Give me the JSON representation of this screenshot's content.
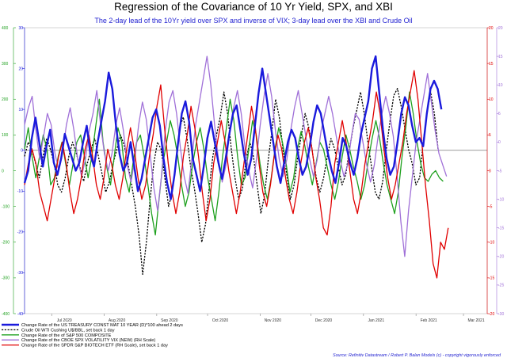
{
  "chart_data": {
    "type": "line",
    "title": "Regression of the Covariance of 10 Yr Yield, SPX, and XBI",
    "subtitle": "The 2-day lead of the 10Yr yield over SPX and inverse of VIX; 3-day lead over the XBI and Crude Oil",
    "source": "Source: Refinitiv Datastream / Robert P. Balan Models (c) - copyright vigorously enforced",
    "x_ticks": [
      "Jul 2020",
      "Aug 2020",
      "Sep 2020",
      "Oct 2020",
      "Nov 2020",
      "Dec 2020",
      "Jan 2021",
      "Feb 2021",
      "Mar 2021"
    ],
    "x_range": [
      "2020-06-15",
      "2021-03-15"
    ],
    "axes": {
      "blue": {
        "ticks": [
          "-40",
          "-30",
          "-20",
          "-10",
          "0",
          "10",
          "20",
          "30"
        ],
        "ylim": [
          -40,
          30
        ],
        "color": "#1a1adc"
      },
      "green": {
        "ticks": [
          "-400",
          "-300",
          "-200",
          "-100",
          "0",
          "100",
          "200",
          "300",
          "400"
        ],
        "ylim": [
          -400,
          400
        ],
        "color": "#1ea01e"
      },
      "red": {
        "ticks": [
          "-20",
          "-15",
          "-10",
          "-5",
          "0",
          "5",
          "10",
          "15",
          "20"
        ],
        "ylim": [
          -20,
          20
        ],
        "color": "#e00000"
      },
      "purple": {
        "ticks": [
          "-30",
          "-25",
          "-20",
          "-15",
          "-10",
          "-5",
          "0",
          "5",
          "10",
          "15",
          "20"
        ],
        "ylim": [
          -30,
          20
        ],
        "color": "#a070d8"
      }
    },
    "zero_line": true,
    "legend_position": "bottom-left",
    "series": [
      {
        "name": "Change Rate of the US TREASURY CONST MAT 10 YEAR (D)*100 ahead 2 days",
        "axis": "blue",
        "color": "#1a1adc",
        "style": "solid",
        "width": 2.4,
        "values": [
          -8,
          -5,
          3,
          8,
          2,
          -4,
          1,
          5,
          -3,
          -6,
          -2,
          4,
          1,
          -2,
          -5,
          -3,
          2,
          6,
          -1,
          -4,
          2,
          7,
          12,
          19,
          15,
          6,
          -1,
          -5,
          -3,
          2,
          -4,
          -10,
          -7,
          -2,
          3,
          8,
          10,
          6,
          -2,
          -8,
          -12,
          -6,
          2,
          9,
          12,
          7,
          -2,
          -6,
          -10,
          -4,
          3,
          7,
          2,
          -3,
          -7,
          -2,
          4,
          9,
          11,
          5,
          -1,
          -6,
          -2,
          6,
          14,
          20,
          14,
          8,
          2,
          -4,
          -8,
          -3,
          2,
          5,
          3,
          -2,
          -6,
          -4,
          1,
          7,
          11,
          9,
          4,
          -1,
          -5,
          -8,
          -3,
          3,
          1,
          -3,
          -6,
          -2,
          4,
          8,
          12,
          20,
          23,
          14,
          5,
          -2,
          -6,
          -4,
          2,
          9,
          13,
          11,
          6,
          2,
          3,
          1,
          9,
          15,
          17,
          15,
          10
        ],
        "start": "2020-06-15",
        "end": "2021-02-16"
      },
      {
        "name": "Crude Oil WTI Cushing U$/BBL, set back 1 day",
        "axis": "green",
        "color": "#000000",
        "style": "dashed",
        "width": 1.3,
        "values": [
          40,
          80,
          60,
          20,
          -20,
          40,
          90,
          60,
          20,
          -40,
          -60,
          -20,
          40,
          80,
          50,
          10,
          -30,
          20,
          60,
          90,
          40,
          -10,
          -60,
          -30,
          20,
          60,
          100,
          70,
          20,
          -40,
          -100,
          -180,
          -290,
          -200,
          -80,
          20,
          80,
          60,
          -20,
          -100,
          -60,
          20,
          120,
          150,
          90,
          10,
          -50,
          -120,
          -200,
          -150,
          -50,
          40,
          100,
          150,
          220,
          160,
          60,
          -20,
          -80,
          -50,
          30,
          80,
          40,
          -40,
          -120,
          -70,
          30,
          110,
          200,
          150,
          60,
          -10,
          -80,
          -40,
          40,
          100,
          160,
          120,
          50,
          -20,
          -60,
          -20,
          40,
          90,
          60,
          10,
          -40,
          -10,
          60,
          120,
          170,
          220,
          160,
          80,
          10,
          -60,
          -80,
          -30,
          60,
          140,
          210,
          230,
          180,
          120,
          60,
          20,
          -40,
          -20,
          80,
          160,
          220,
          160,
          60
        ],
        "start": "2020-06-15",
        "end": "2021-02-14"
      },
      {
        "name": "Change Rate of the of S&P 500 COMPOSITE",
        "axis": "green",
        "color": "#1ea01e",
        "style": "solid",
        "width": 1.3,
        "values": [
          60,
          120,
          40,
          -20,
          40,
          100,
          60,
          -40,
          -20,
          40,
          80,
          20,
          -40,
          20,
          80,
          100,
          40,
          -20,
          40,
          120,
          200,
          80,
          10,
          -40,
          40,
          120,
          80,
          -20,
          -60,
          20,
          80,
          100,
          40,
          -40,
          -120,
          -180,
          -80,
          20,
          80,
          140,
          100,
          40,
          -40,
          -100,
          -60,
          20,
          80,
          120,
          60,
          -20,
          -80,
          -140,
          -60,
          40,
          120,
          200,
          140,
          40,
          -40,
          -20,
          60,
          140,
          100,
          20,
          -40,
          -80,
          -20,
          60,
          120,
          80,
          20,
          -60,
          -20,
          60,
          110,
          70,
          10,
          -40,
          20,
          80,
          60,
          10,
          -40,
          -80,
          -30,
          40,
          100,
          60,
          10,
          -30,
          -80,
          -40,
          30,
          90,
          140,
          90,
          20,
          -40,
          -80,
          -120,
          -60,
          40,
          120,
          220,
          160,
          80,
          20,
          -20,
          -30,
          -10,
          0,
          -20,
          -30
        ],
        "start": "2020-06-15",
        "end": "2021-02-17"
      },
      {
        "name": "Change Rate of the CBOE SPX VOLATILITY VIX (NEW) (RH Scale)",
        "axis": "purple",
        "color": "#a070d8",
        "style": "solid",
        "width": 1.3,
        "values": [
          3,
          6,
          8,
          2,
          -3,
          1,
          5,
          3,
          -2,
          -5,
          -2,
          3,
          6,
          2,
          -3,
          -6,
          -3,
          2,
          5,
          9,
          3,
          -2,
          -5,
          -2,
          3,
          6,
          2,
          -4,
          -7,
          -3,
          3,
          7,
          4,
          -2,
          -8,
          -12,
          -6,
          2,
          7,
          9,
          5,
          -1,
          -6,
          -9,
          -3,
          3,
          7,
          11,
          15,
          10,
          3,
          -3,
          -7,
          -4,
          2,
          6,
          9,
          5,
          -1,
          -5,
          -8,
          -3,
          3,
          8,
          12,
          8,
          2,
          -3,
          -6,
          -3,
          2,
          6,
          9,
          5,
          1,
          -3,
          -6,
          -3,
          2,
          5,
          8,
          5,
          1,
          -3,
          -6,
          -4,
          1,
          5,
          4,
          0,
          -4,
          -7,
          -4,
          1,
          5,
          8,
          5,
          1,
          -6,
          -14,
          -20,
          -12,
          -6,
          0,
          4,
          8,
          12,
          7,
          2,
          -2,
          -4,
          -6
        ],
        "start": "2020-06-15",
        "end": "2021-02-19"
      },
      {
        "name": "Change Rate of the SPDR S&P BIOTECH ETF (RH Scale), set back 1 day",
        "axis": "red",
        "color": "#e00000",
        "style": "solid",
        "width": 1.3,
        "values": [
          -2,
          1,
          3,
          1,
          -3,
          -5,
          -7,
          -4,
          -1,
          2,
          4,
          1,
          -3,
          -6,
          -4,
          -1,
          3,
          5,
          2,
          -2,
          -4,
          -1,
          3,
          1,
          -2,
          -4,
          -1,
          3,
          6,
          3,
          -1,
          -4,
          -2,
          2,
          5,
          9,
          12,
          6,
          1,
          -3,
          -6,
          -3,
          2,
          5,
          9,
          6,
          2,
          -3,
          -7,
          -4,
          1,
          4,
          7,
          4,
          0,
          -3,
          -6,
          -3,
          1,
          5,
          9,
          6,
          1,
          -3,
          -5,
          -2,
          2,
          5,
          3,
          -1,
          -4,
          -6,
          -3,
          1,
          4,
          6,
          3,
          -1,
          -4,
          -8,
          -9,
          -5,
          1,
          4,
          7,
          4,
          0,
          -4,
          -6,
          -3,
          1,
          4,
          7,
          11,
          8,
          3,
          -1,
          -4,
          -2,
          1,
          4,
          8,
          11,
          14,
          10,
          4,
          -2,
          -7,
          -13,
          -15,
          -10,
          -11,
          -8
        ],
        "start": "2020-06-15",
        "end": "2021-02-20"
      }
    ]
  }
}
